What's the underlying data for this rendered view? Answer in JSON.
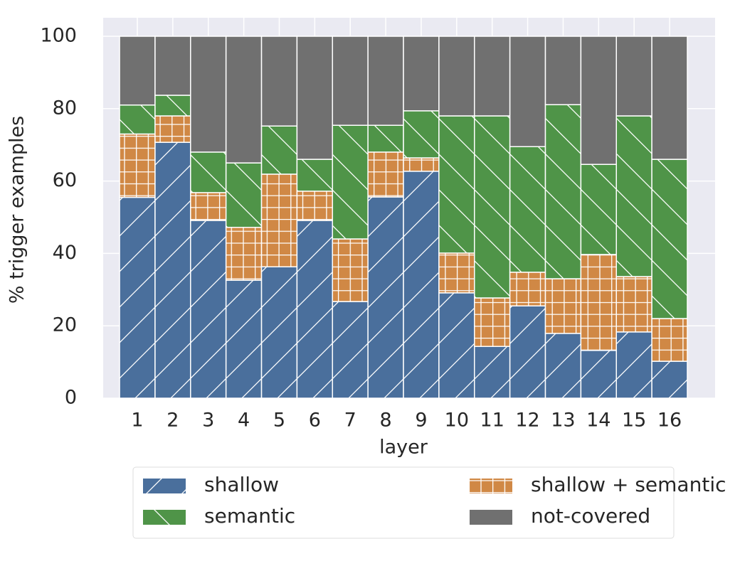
{
  "chart_data": {
    "type": "stacked_bar",
    "xlabel": "layer",
    "ylabel": "% trigger examples",
    "categories": [
      "1",
      "2",
      "3",
      "4",
      "5",
      "6",
      "7",
      "8",
      "9",
      "10",
      "11",
      "12",
      "13",
      "14",
      "15",
      "16"
    ],
    "ylim": [
      0,
      100
    ],
    "yticks": [
      0,
      20,
      40,
      60,
      80,
      100
    ],
    "grid": true,
    "series": [
      {
        "name": "shallow",
        "color": "#4a6f9c",
        "hatch": "/",
        "values": [
          55.5,
          70.7,
          49.1,
          32.6,
          36.3,
          49.1,
          26.7,
          55.6,
          62.7,
          29.1,
          14.3,
          25.5,
          17.9,
          13.2,
          18.3,
          10.2
        ]
      },
      {
        "name": "shallow + semantic",
        "color": "#d08845",
        "hatch": "+",
        "values": [
          17.5,
          7.3,
          7.7,
          14.6,
          25.6,
          8.1,
          17.3,
          12.4,
          3.7,
          11,
          13.4,
          9.3,
          15.1,
          26.5,
          15.3,
          11.8
        ]
      },
      {
        "name": "semantic",
        "color": "#4f9448",
        "hatch": "\\",
        "values": [
          8,
          5.7,
          11.2,
          17.8,
          13.3,
          8.8,
          31.4,
          7.4,
          13,
          37.9,
          50.3,
          34.7,
          48.1,
          24.9,
          44.4,
          44
        ]
      },
      {
        "name": "not-covered",
        "color": "#707070",
        "hatch": "",
        "values": [
          19,
          16.3,
          32,
          35,
          24.8,
          34,
          24.6,
          24.6,
          20.6,
          22,
          22,
          30.5,
          18.9,
          35.4,
          22,
          34
        ]
      }
    ]
  }
}
